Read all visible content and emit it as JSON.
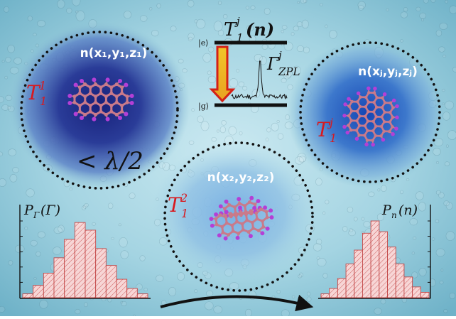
{
  "colors": {
    "background": "#8fc6d6",
    "background_light": "#c6e6ef",
    "spot_dark": "#1e2c8c",
    "spot_light": "#6fa4dc",
    "molecule_bond": "#c97a8a",
    "molecule_atom": "#b43fd6",
    "label_red": "#d8191f",
    "histogram_fill": "#f6d3d3",
    "histogram_stroke": "#c24848",
    "arrow_yellow": "#f1c62a",
    "arrow_red": "#d42016"
  },
  "labels": {
    "n1": "n(x₁,y₁,z₁)",
    "n2": "n(x₂,y₂,z₂)",
    "nj": "n(xⱼ,yⱼ,zⱼ)",
    "t1": {
      "base": "T",
      "sup": "1",
      "sub": "1"
    },
    "t2": {
      "base": "T",
      "sup": "2",
      "sub": "1"
    },
    "tj": {
      "base": "T",
      "sup": "j",
      "sub": "1"
    },
    "lambda": "< λ/2",
    "level_title": {
      "base": "T",
      "sup": "j",
      "sub": "1",
      "arg": "(n)"
    },
    "excited": "|e⟩",
    "ground": "|g⟩",
    "gamma": {
      "base": "Γ",
      "sup": "j",
      "sub": "ZPL"
    },
    "hist_left": {
      "base": "P",
      "sub": "Γ",
      "arg": "(Γ)"
    },
    "hist_right": {
      "base": "P",
      "sub": "n",
      "arg": "(n)"
    }
  },
  "histograms": {
    "left": [
      0.05,
      0.16,
      0.32,
      0.52,
      0.76,
      0.98,
      0.88,
      0.64,
      0.42,
      0.24,
      0.12,
      0.05
    ],
    "right": [
      0.05,
      0.12,
      0.25,
      0.44,
      0.62,
      0.84,
      1.0,
      0.86,
      0.66,
      0.44,
      0.27,
      0.14,
      0.07
    ]
  }
}
